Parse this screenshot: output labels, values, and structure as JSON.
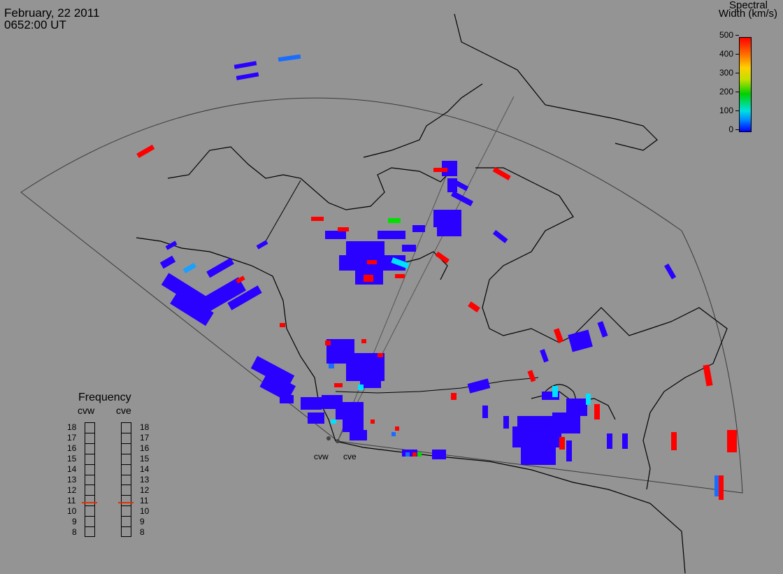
{
  "header": {
    "date": "February, 22 2011",
    "time": "0652:00 UT"
  },
  "colorbar": {
    "title_line1": "Spectral",
    "title_line2": "Width (km/s)",
    "ticks": [
      "500",
      "400",
      "300",
      "200",
      "100",
      "0"
    ],
    "range": [
      0,
      500
    ]
  },
  "frequency": {
    "title": "Frequency",
    "columns": [
      "cvw",
      "cve"
    ],
    "scale": [
      "18",
      "17",
      "16",
      "15",
      "14",
      "13",
      "12",
      "11",
      "10",
      "9",
      "8"
    ],
    "values_mhz": {
      "cvw": 10.8,
      "cve": 10.8
    },
    "marker_color": "#e03000"
  },
  "radars": {
    "cvw": "cvw",
    "cve": "cve"
  },
  "colors": {
    "background": "#949494",
    "low_width": "#2a00ff",
    "high_width": "#ff0000",
    "cyan": "#00e0ff",
    "green": "#00e000"
  }
}
